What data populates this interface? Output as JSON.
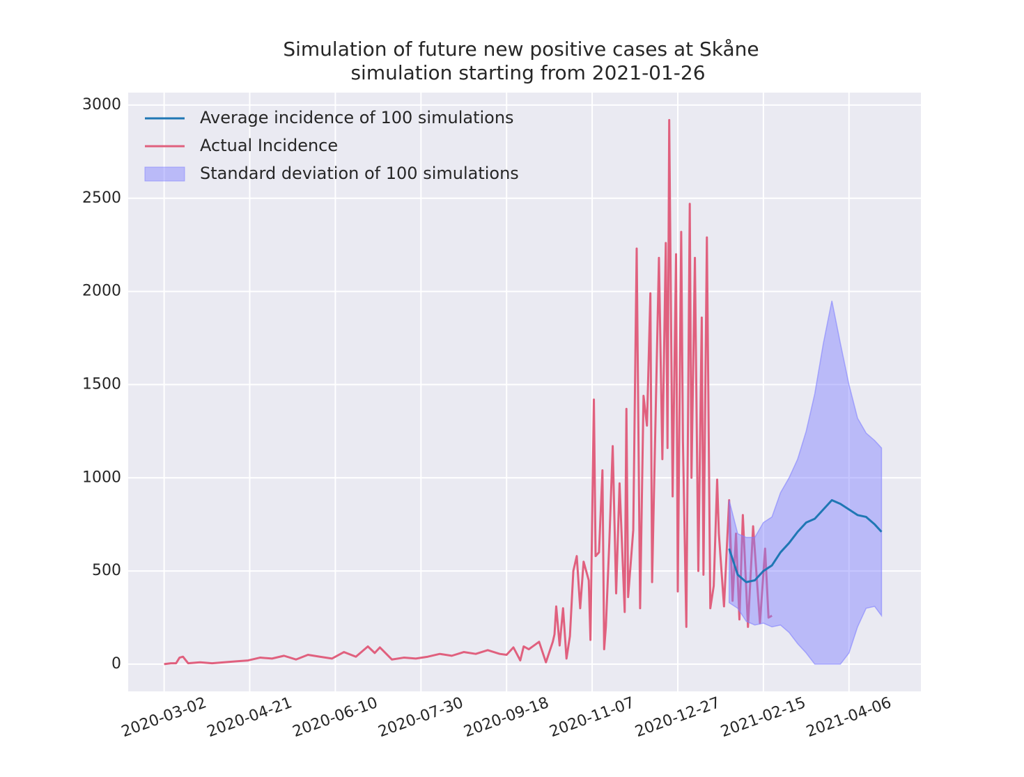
{
  "chart_data": {
    "type": "line",
    "title": "Simulation of future new positive cases at Skåne",
    "subtitle": "simulation starting from 2021-01-26",
    "xlim": [
      "2020-02-10",
      "2021-05-18"
    ],
    "xticks": [
      "2020-03-02",
      "2020-04-21",
      "2020-06-10",
      "2020-07-30",
      "2020-09-18",
      "2020-11-07",
      "2020-12-27",
      "2021-02-15",
      "2021-04-06"
    ],
    "ylim": [
      -146,
      3067
    ],
    "yticks": [
      0,
      500,
      1000,
      1500,
      2000,
      2500,
      3000
    ],
    "grid": true,
    "legend": "upper left",
    "series": [
      {
        "name": "Average incidence of 100 simulations",
        "color": "#1f77b4",
        "x": [
          "2021-01-26",
          "2021-01-31",
          "2021-02-05",
          "2021-02-10",
          "2021-02-15",
          "2021-02-20",
          "2021-02-25",
          "2021-03-02",
          "2021-03-07",
          "2021-03-12",
          "2021-03-17",
          "2021-03-22",
          "2021-03-27",
          "2021-04-01",
          "2021-04-06",
          "2021-04-11",
          "2021-04-16",
          "2021-04-21",
          "2021-04-25"
        ],
        "values": [
          620,
          480,
          440,
          450,
          500,
          530,
          600,
          650,
          710,
          760,
          780,
          830,
          880,
          860,
          830,
          800,
          790,
          750,
          710
        ]
      },
      {
        "name": "Actual Incidence",
        "color": "#e0607e",
        "x": [
          "2020-03-02",
          "2020-03-06",
          "2020-03-09",
          "2020-03-11",
          "2020-03-13",
          "2020-03-16",
          "2020-03-23",
          "2020-03-30",
          "2020-04-06",
          "2020-04-13",
          "2020-04-20",
          "2020-04-27",
          "2020-05-04",
          "2020-05-11",
          "2020-05-18",
          "2020-05-25",
          "2020-06-01",
          "2020-06-08",
          "2020-06-15",
          "2020-06-22",
          "2020-06-29",
          "2020-07-03",
          "2020-07-06",
          "2020-07-13",
          "2020-07-20",
          "2020-07-27",
          "2020-08-03",
          "2020-08-10",
          "2020-08-17",
          "2020-08-24",
          "2020-08-31",
          "2020-09-07",
          "2020-09-14",
          "2020-09-18",
          "2020-09-22",
          "2020-09-26",
          "2020-09-28",
          "2020-10-01",
          "2020-10-07",
          "2020-10-11",
          "2020-10-15",
          "2020-10-16",
          "2020-10-17",
          "2020-10-19",
          "2020-10-21",
          "2020-10-23",
          "2020-10-25",
          "2020-10-27",
          "2020-10-29",
          "2020-10-31",
          "2020-11-02",
          "2020-11-05",
          "2020-11-06",
          "2020-11-08",
          "2020-11-09",
          "2020-11-11",
          "2020-11-13",
          "2020-11-14",
          "2020-11-15",
          "2020-11-17",
          "2020-11-19",
          "2020-11-21",
          "2020-11-23",
          "2020-11-26",
          "2020-11-27",
          "2020-11-28",
          "2020-12-01",
          "2020-12-03",
          "2020-12-05",
          "2020-12-07",
          "2020-12-09",
          "2020-12-11",
          "2020-12-12",
          "2020-12-16",
          "2020-12-18",
          "2020-12-20",
          "2020-12-21",
          "2020-12-22",
          "2020-12-24",
          "2020-12-26",
          "2020-12-27",
          "2020-12-29",
          "2020-12-30",
          "2021-01-01",
          "2021-01-03",
          "2021-01-04",
          "2021-01-06",
          "2021-01-08",
          "2021-01-10",
          "2021-01-11",
          "2021-01-13",
          "2021-01-15",
          "2021-01-17",
          "2021-01-19",
          "2021-01-20",
          "2021-01-23",
          "2021-01-26",
          "2021-01-28",
          "2021-01-30",
          "2021-02-01",
          "2021-02-03",
          "2021-02-06",
          "2021-02-09",
          "2021-02-13",
          "2021-02-16",
          "2021-02-18",
          "2021-02-20"
        ],
        "values": [
          0,
          5,
          5,
          35,
          40,
          5,
          10,
          5,
          10,
          15,
          20,
          35,
          30,
          45,
          25,
          50,
          40,
          30,
          65,
          40,
          95,
          60,
          90,
          25,
          35,
          30,
          40,
          55,
          45,
          65,
          55,
          75,
          55,
          50,
          90,
          20,
          95,
          80,
          120,
          10,
          120,
          160,
          310,
          100,
          300,
          30,
          150,
          500,
          580,
          300,
          550,
          450,
          130,
          1420,
          580,
          600,
          1040,
          80,
          200,
          650,
          1170,
          380,
          970,
          280,
          1370,
          360,
          720,
          2230,
          300,
          1440,
          1280,
          1990,
          440,
          2180,
          1100,
          2260,
          1160,
          2920,
          900,
          2200,
          390,
          2320,
          1200,
          200,
          2470,
          1000,
          2180,
          500,
          1860,
          480,
          2290,
          300,
          420,
          990,
          700,
          310,
          880,
          340,
          700,
          240,
          800,
          200,
          740,
          220,
          620,
          250,
          260
        ]
      },
      {
        "name": "Standard deviation of 100 simulations",
        "color": "#8080ff",
        "x": [
          "2021-01-26",
          "2021-01-31",
          "2021-02-05",
          "2021-02-10",
          "2021-02-15",
          "2021-02-20",
          "2021-02-25",
          "2021-03-02",
          "2021-03-07",
          "2021-03-12",
          "2021-03-17",
          "2021-03-22",
          "2021-03-27",
          "2021-04-01",
          "2021-04-06",
          "2021-04-11",
          "2021-04-16",
          "2021-04-21",
          "2021-04-25"
        ],
        "lower": [
          330,
          300,
          230,
          210,
          220,
          200,
          210,
          170,
          110,
          60,
          0,
          0,
          0,
          0,
          60,
          200,
          300,
          310,
          260
        ],
        "upper": [
          880,
          700,
          680,
          680,
          760,
          790,
          920,
          1000,
          1100,
          1250,
          1450,
          1720,
          1950,
          1720,
          1500,
          1320,
          1240,
          1200,
          1160
        ]
      }
    ]
  }
}
